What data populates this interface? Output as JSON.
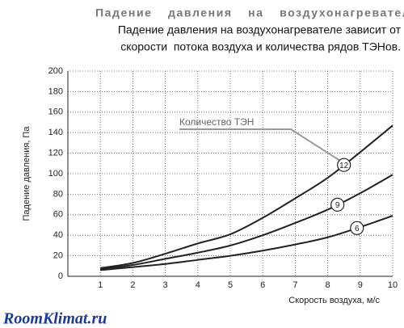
{
  "chart_data": {
    "type": "line",
    "title": "Падение давления на воздухонагревателе",
    "subtitle": [
      "Падение давления на воздухонагревателе зависит от",
      "скорости  потока воздуха и количества рядов ТЭНов."
    ],
    "x_label": "Скорость воздуха, м/с",
    "y_label": "Падение давления, Па",
    "annotation": "Количество ТЭН",
    "watermark": "RoomKlimat.ru",
    "x": [
      1,
      2,
      3,
      4,
      5,
      6,
      7,
      8,
      9,
      10
    ],
    "series": [
      {
        "name": "12",
        "color": "#222222",
        "values": [
          8,
          13,
          22,
          32,
          41,
          57,
          76,
          96,
          121,
          147
        ]
      },
      {
        "name": "9",
        "color": "#222222",
        "values": [
          7,
          11,
          17,
          23,
          30,
          40,
          52,
          65,
          81,
          99
        ]
      },
      {
        "name": "6",
        "color": "#222222",
        "values": [
          6,
          9,
          12,
          16,
          20,
          25,
          31,
          38,
          48,
          59
        ]
      }
    ],
    "xlim": [
      0,
      10
    ],
    "xticks": [
      1,
      2,
      3,
      4,
      5,
      6,
      7,
      8,
      9,
      10
    ],
    "ylim": [
      0,
      200
    ],
    "yticks": [
      0,
      20,
      40,
      60,
      80,
      100,
      120,
      140,
      160,
      180,
      200
    ],
    "grid": true
  }
}
